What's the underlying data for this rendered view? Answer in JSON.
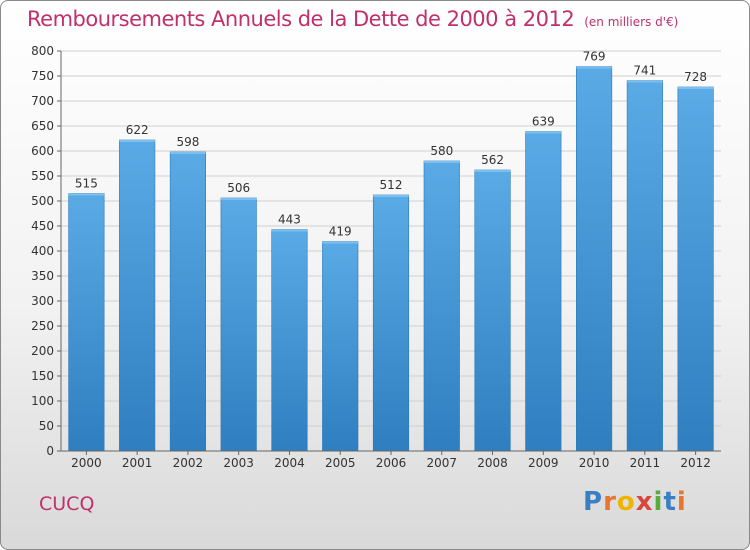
{
  "title": "Remboursements Annuels de la Dette de 2000 à 2012",
  "unit": "(en milliers d'€)",
  "commune": "CUCQ",
  "logo": {
    "parts": [
      "P",
      "r",
      "o",
      "x",
      "i",
      "t",
      "i"
    ]
  },
  "colors": {
    "title": "#c0306a",
    "bar_top": "#5aaae6",
    "bar_bottom": "#2f7fc0",
    "grid": "#d0d0d0"
  },
  "chart_data": {
    "type": "bar",
    "title": "Remboursements Annuels de la Dette de 2000 à 2012",
    "ylabel": "en milliers d'€",
    "xlabel": "",
    "categories": [
      "2000",
      "2001",
      "2002",
      "2003",
      "2004",
      "2005",
      "2006",
      "2007",
      "2008",
      "2009",
      "2010",
      "2011",
      "2012"
    ],
    "values": [
      515,
      622,
      598,
      506,
      443,
      419,
      512,
      580,
      562,
      639,
      769,
      741,
      728
    ],
    "ylim": [
      0,
      800
    ],
    "ytick_step": 50,
    "grid": true
  }
}
